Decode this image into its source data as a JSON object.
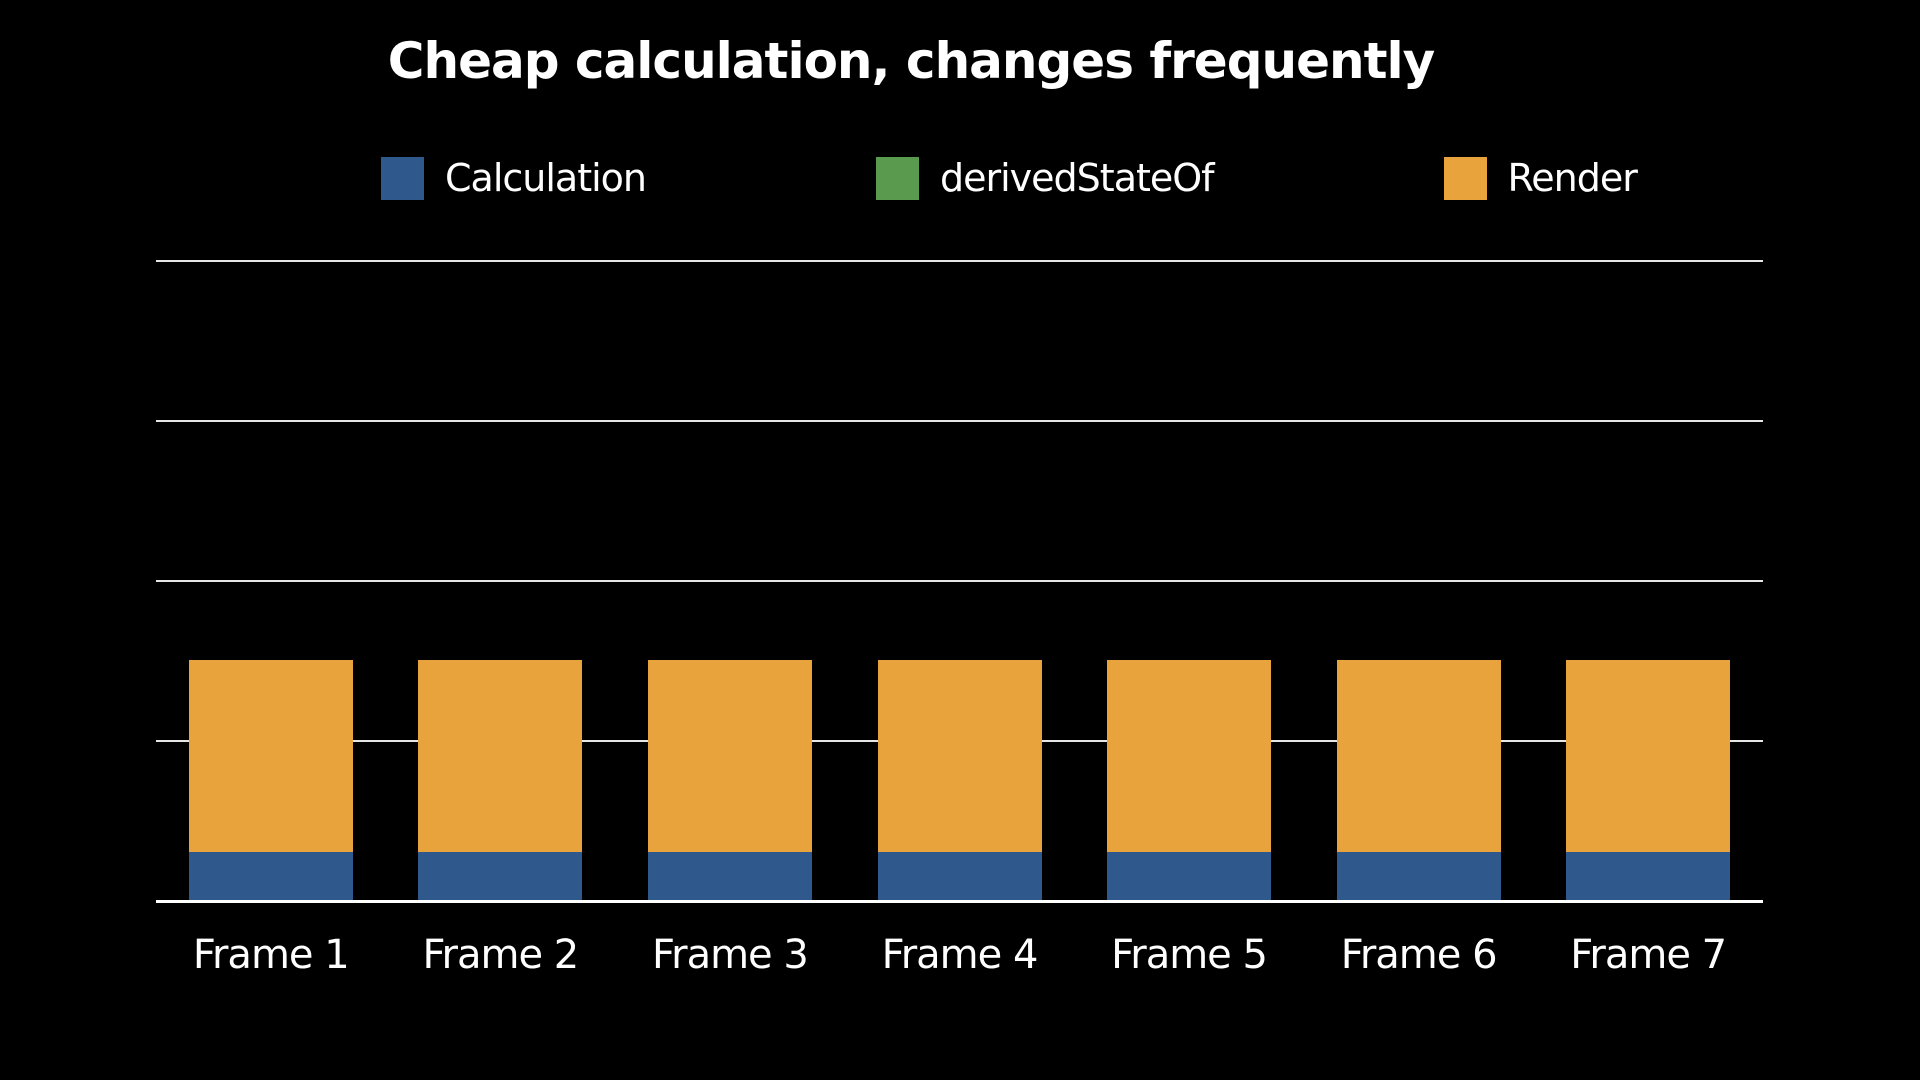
{
  "chart": {
    "title": "Cheap calculation, changes frequently",
    "background_color": "#000000",
    "text_color": "#ffffff",
    "gridline_color": "#e6e6e6",
    "axis_color": "#ffffff"
  },
  "chart_data": {
    "type": "bar",
    "stacked": true,
    "title": "Cheap calculation, changes frequently",
    "categories": [
      "Frame 1",
      "Frame 2",
      "Frame 3",
      "Frame 4",
      "Frame 5",
      "Frame 6",
      "Frame 7"
    ],
    "series": [
      {
        "name": "Calculation",
        "color": "#2f588c",
        "values": [
          0.3,
          0.3,
          0.3,
          0.3,
          0.3,
          0.3,
          0.3
        ]
      },
      {
        "name": "derivedStateOf",
        "color": "#5a9a4e",
        "values": [
          0,
          0,
          0,
          0,
          0,
          0,
          0
        ]
      },
      {
        "name": "Render",
        "color": "#e8a33d",
        "values": [
          1.2,
          1.2,
          1.2,
          1.2,
          1.2,
          1.2,
          1.2
        ]
      }
    ],
    "xlabel": "",
    "ylabel": "",
    "ylim": [
      0,
      4.4
    ],
    "gridline_values": [
      1,
      2,
      3,
      4
    ],
    "y_axis_labels_visible": false,
    "legend_position": "top"
  }
}
